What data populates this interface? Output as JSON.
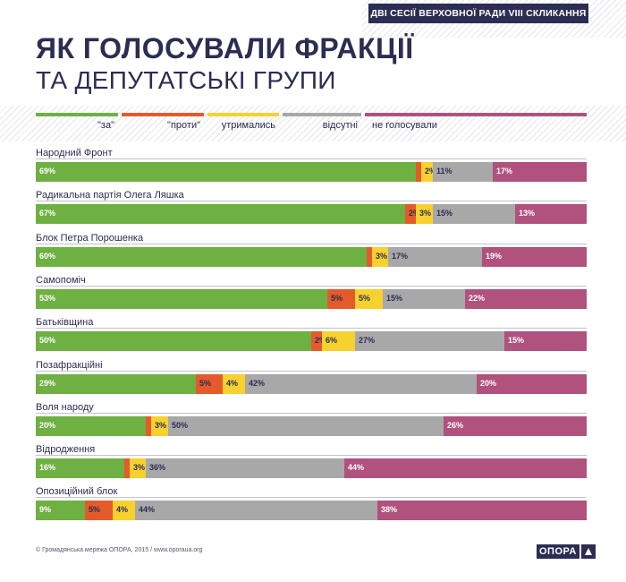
{
  "header": {
    "banner": "ДВІ СЕСІЇ ВЕРХОВНОЇ РАДИ VIII СКЛИКАННЯ",
    "title_line1": "ЯК ГОЛОСУВАЛИ ФРАКЦІЇ",
    "title_line2": "ТА ДЕПУТАТСЬКІ ГРУПИ"
  },
  "footer": {
    "credit": "© Громадянська мережа ОПОРА, 2015 / www.oporaua.org",
    "logo_text": "ОПОРА"
  },
  "colors": {
    "za": "#6fb043",
    "proty": "#e45a2b",
    "utrymalys": "#f7d12e",
    "vidsutni": "#a8a8a8",
    "ne_holosuvaly": "#b0517e",
    "navy": "#2b2d52"
  },
  "chart_data": {
    "type": "bar",
    "stacked": true,
    "orientation": "horizontal",
    "unit": "%",
    "xlim": [
      0,
      100
    ],
    "legend": [
      {
        "key": "za",
        "label": "\"за\""
      },
      {
        "key": "proty",
        "label": "\"проти\""
      },
      {
        "key": "utrymalys",
        "label": "утримались"
      },
      {
        "key": "vidsutni",
        "label": "відсутні"
      },
      {
        "key": "ne_holosuvaly",
        "label": "не голосували"
      }
    ],
    "categories": [
      "Народний Фронт",
      "Радикальна партія Олега Ляшка",
      "Блок Петра Порошенка",
      "Самопоміч",
      "Батьківщина",
      "Позафракційні",
      "Воля народу",
      "Відродження",
      "Опозиційний блок"
    ],
    "series": [
      {
        "key": "za",
        "name": "\"за\"",
        "values": [
          69,
          67,
          60,
          53,
          50,
          29,
          20,
          16,
          9
        ],
        "labels": [
          "69%",
          "67%",
          "60%",
          "53%",
          "50%",
          "29%",
          "20%",
          "16%",
          "9%"
        ]
      },
      {
        "key": "proty",
        "name": "\"проти\"",
        "values": [
          1,
          2,
          1,
          5,
          2,
          5,
          1,
          1,
          5
        ],
        "labels": [
          "",
          "2%",
          "",
          "5%",
          "2%",
          "5%",
          "",
          "",
          "5%"
        ]
      },
      {
        "key": "utrymalys",
        "name": "утримались",
        "values": [
          2,
          3,
          3,
          5,
          6,
          4,
          3,
          3,
          4
        ],
        "labels": [
          "2%",
          "3%",
          "3%",
          "5%",
          "6%",
          "4%",
          "3%",
          "3%",
          "4%"
        ]
      },
      {
        "key": "vidsutni",
        "name": "відсутні",
        "values": [
          11,
          15,
          17,
          15,
          27,
          42,
          50,
          36,
          44
        ],
        "labels": [
          "11%",
          "15%",
          "17%",
          "15%",
          "27%",
          "42%",
          "50%",
          "36%",
          "44%"
        ]
      },
      {
        "key": "ne_holosuvaly",
        "name": "не голосували",
        "values": [
          17,
          13,
          19,
          22,
          15,
          20,
          26,
          44,
          38
        ],
        "labels": [
          "17%",
          "13%",
          "19%",
          "22%",
          "15%",
          "20%",
          "26%",
          "44%",
          "38%"
        ]
      }
    ]
  }
}
